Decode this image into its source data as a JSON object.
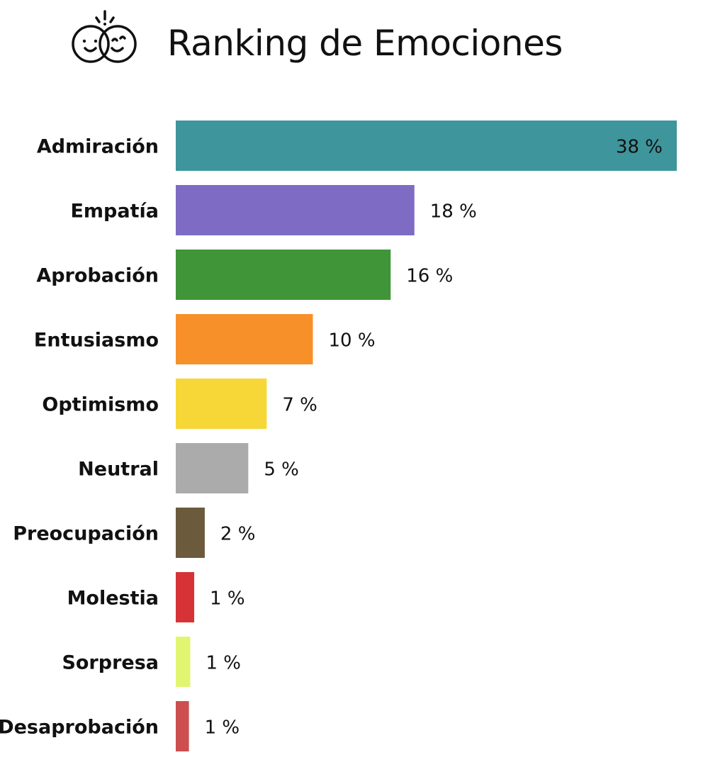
{
  "header": {
    "title": "Ranking de Emociones",
    "icon": "two-smiling-faces-icon"
  },
  "chart_data": {
    "type": "bar",
    "orientation": "horizontal",
    "title": "Ranking de Emociones",
    "xlim": [
      0,
      38
    ],
    "grid": false,
    "categories": [
      "Admiración",
      "Empatía",
      "Aprobación",
      "Entusiasmo",
      "Optimismo",
      "Neutral",
      "Preocupación",
      "Molestia",
      "Sorpresa",
      "Desaprobación"
    ],
    "values": [
      38,
      18.1,
      16.3,
      10.4,
      6.9,
      5.5,
      2.2,
      1.4,
      1.1,
      1.0
    ],
    "labels": [
      "38 %",
      "18 %",
      "16 %",
      "10 %",
      "7 %",
      "5 %",
      "2 %",
      "1 %",
      "1 %",
      "1 %"
    ],
    "colors": [
      "#3f959c",
      "#7e6bc4",
      "#3f9537",
      "#f8902a",
      "#f6d737",
      "#ababab",
      "#6b5a3c",
      "#d63337",
      "#e2f571",
      "#cc4e4e"
    ]
  }
}
